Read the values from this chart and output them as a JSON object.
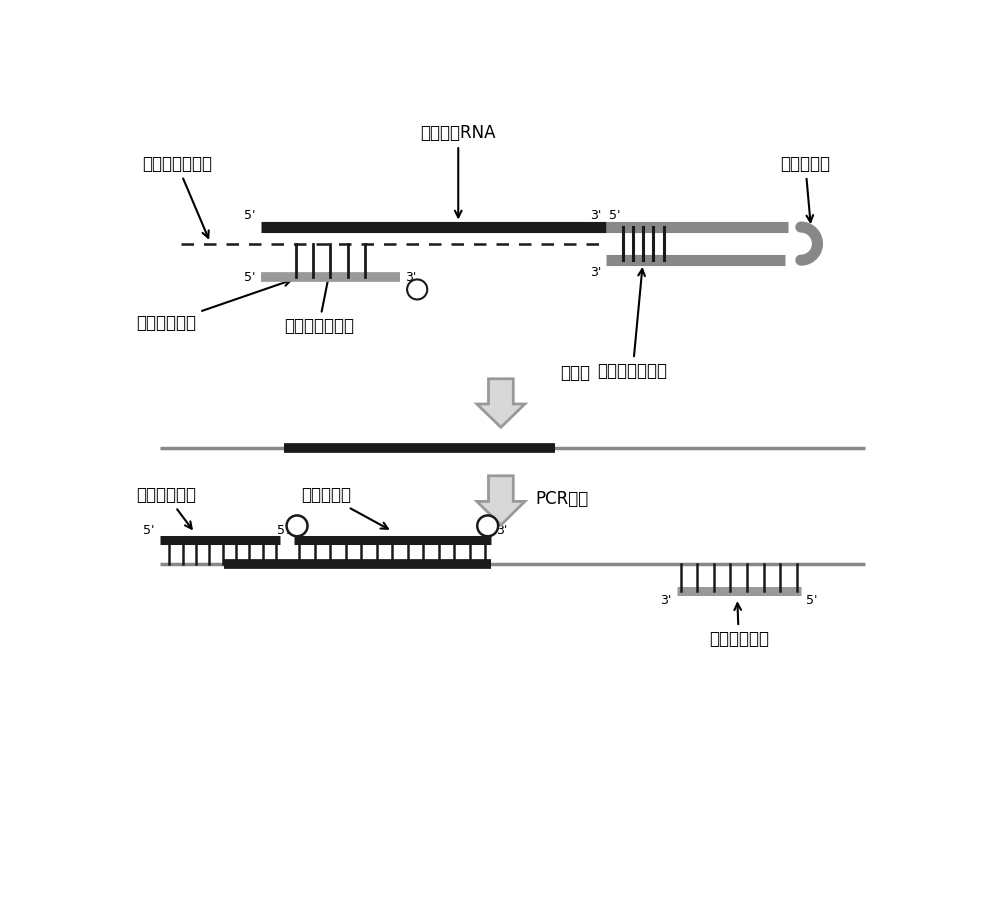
{
  "bg_color": "#ffffff",
  "dark_line": "#1a1a1a",
  "gray_line": "#888888",
  "label_noncoding_rna": "非编码小RNA",
  "label_rt_extension": "逆转录延伸引物",
  "label_rt_primer": "逆转录引物",
  "label_upstream": "上游通用引物",
  "label_specific_seq1": "特异性结合序列",
  "label_specific_seq2": "特异性结合序列",
  "label_reverse_transcription": "逆转录",
  "label_pcr": "PCR检测",
  "label_upstream2": "上游通用引物",
  "label_specific_probe": "特异性探针",
  "label_downstream": "下游通用引物",
  "font_size_label": 12,
  "font_size_end": 9
}
